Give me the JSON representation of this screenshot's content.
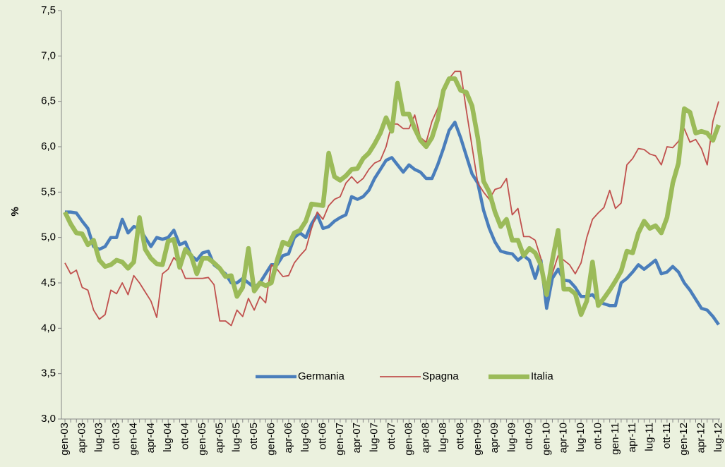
{
  "chart_data": {
    "type": "line",
    "y_label": "%",
    "categories": [
      "gen-03",
      null,
      null,
      "apr-03",
      null,
      null,
      "lug-03",
      null,
      null,
      "ott-03",
      null,
      null,
      "gen-04",
      null,
      null,
      "apr-04",
      null,
      null,
      "lug-04",
      null,
      null,
      "ott-04",
      null,
      null,
      "gen-05",
      null,
      null,
      "apr-05",
      null,
      null,
      "lug-05",
      null,
      null,
      "ott-05",
      null,
      null,
      "gen-06",
      null,
      null,
      "apr-06",
      null,
      null,
      "lug-06",
      null,
      null,
      "ott-06",
      null,
      null,
      "gen-07",
      null,
      null,
      "apr-07",
      null,
      null,
      "lug-07",
      null,
      null,
      "ott-07",
      null,
      null,
      "gen-08",
      null,
      null,
      "apr-08",
      null,
      null,
      "lug-08",
      null,
      null,
      "ott-08",
      null,
      null,
      "gen-09",
      null,
      null,
      "apr-09",
      null,
      null,
      "lug-09",
      null,
      null,
      "ott-09",
      null,
      null,
      "gen-10",
      null,
      null,
      "apr-10",
      null,
      null,
      "lug-10",
      null,
      null,
      "ott-10",
      null,
      null,
      "gen-11",
      null,
      null,
      "apr-11",
      null,
      null,
      "lug-11",
      null,
      null,
      "ott-11",
      null,
      null,
      "gen-12",
      null,
      null,
      "apr-12",
      null,
      null,
      "lug-12"
    ],
    "series": [
      {
        "name": "Germania",
        "color": "#4a7ebb",
        "values": [
          5.28,
          5.28,
          5.27,
          5.18,
          5.1,
          4.9,
          4.87,
          4.9,
          5.0,
          5.0,
          5.2,
          5.05,
          5.12,
          5.1,
          5.0,
          4.9,
          5.0,
          4.98,
          5.0,
          5.08,
          4.92,
          4.95,
          4.8,
          4.75,
          4.83,
          4.85,
          4.7,
          4.65,
          4.6,
          4.5,
          4.5,
          4.55,
          4.5,
          4.45,
          4.5,
          4.6,
          4.7,
          4.7,
          4.8,
          4.82,
          5.0,
          5.05,
          5.0,
          5.15,
          5.25,
          5.1,
          5.12,
          5.18,
          5.22,
          5.25,
          5.45,
          5.42,
          5.45,
          5.52,
          5.65,
          5.75,
          5.85,
          5.88,
          5.8,
          5.72,
          5.8,
          5.75,
          5.72,
          5.65,
          5.65,
          5.8,
          5.98,
          6.18,
          6.27,
          6.1,
          5.9,
          5.7,
          5.6,
          5.3,
          5.1,
          4.95,
          4.85,
          4.83,
          4.82,
          4.75,
          4.8,
          4.75,
          4.55,
          4.75,
          4.22,
          4.55,
          4.65,
          4.53,
          4.52,
          4.45,
          4.35,
          4.35,
          4.37,
          4.3,
          4.27,
          4.25,
          4.25,
          4.5,
          4.55,
          4.62,
          4.7,
          4.65,
          4.7,
          4.75,
          4.6,
          4.62,
          4.68,
          4.62,
          4.5,
          4.42,
          4.32,
          4.22,
          4.2,
          4.13,
          4.04
        ]
      },
      {
        "name": "Spagna",
        "color": "#c0504d",
        "values": [
          4.72,
          4.6,
          4.64,
          4.45,
          4.42,
          4.2,
          4.1,
          4.15,
          4.42,
          4.38,
          4.5,
          4.37,
          4.58,
          4.5,
          4.4,
          4.3,
          4.12,
          4.6,
          4.65,
          4.78,
          4.7,
          4.55,
          4.55,
          4.55,
          4.55,
          4.56,
          4.48,
          4.08,
          4.08,
          4.03,
          4.2,
          4.13,
          4.33,
          4.2,
          4.35,
          4.28,
          4.7,
          4.65,
          4.57,
          4.58,
          4.72,
          4.8,
          4.87,
          5.1,
          5.28,
          5.2,
          5.35,
          5.42,
          5.45,
          5.6,
          5.67,
          5.6,
          5.65,
          5.75,
          5.82,
          5.85,
          6.0,
          6.25,
          6.25,
          6.2,
          6.2,
          6.35,
          6.1,
          6.05,
          6.28,
          6.42,
          6.6,
          6.75,
          6.83,
          6.83,
          6.4,
          6.0,
          5.6,
          5.5,
          5.42,
          5.53,
          5.55,
          5.65,
          5.25,
          5.32,
          5.01,
          5.01,
          4.97,
          4.77,
          4.45,
          4.6,
          4.8,
          4.75,
          4.7,
          4.6,
          4.72,
          5.0,
          5.2,
          5.27,
          5.33,
          5.52,
          5.32,
          5.38,
          5.8,
          5.87,
          5.98,
          5.97,
          5.92,
          5.9,
          5.8,
          6.0,
          5.99,
          6.06,
          6.2,
          6.05,
          6.08,
          5.98,
          5.8,
          6.28,
          6.5
        ]
      },
      {
        "name": "Italia",
        "color": "#9bbb59",
        "values": [
          5.28,
          5.15,
          5.05,
          5.04,
          4.92,
          4.97,
          4.75,
          4.68,
          4.7,
          4.75,
          4.73,
          4.66,
          4.73,
          5.22,
          4.87,
          4.77,
          4.71,
          4.7,
          4.96,
          4.98,
          4.67,
          4.87,
          4.8,
          4.6,
          4.77,
          4.77,
          4.72,
          4.66,
          4.57,
          4.58,
          4.35,
          4.45,
          4.88,
          4.41,
          4.5,
          4.47,
          4.5,
          4.75,
          4.95,
          4.92,
          5.05,
          5.08,
          5.18,
          5.37,
          5.36,
          5.35,
          5.93,
          5.67,
          5.63,
          5.68,
          5.75,
          5.76,
          5.87,
          5.93,
          6.03,
          6.15,
          6.32,
          6.17,
          6.7,
          6.36,
          6.36,
          6.2,
          6.07,
          6.0,
          6.1,
          6.3,
          6.62,
          6.75,
          6.75,
          6.62,
          6.6,
          6.45,
          6.1,
          5.62,
          5.5,
          5.28,
          5.12,
          5.2,
          4.97,
          4.97,
          4.8,
          4.88,
          4.83,
          4.7,
          4.37,
          4.75,
          5.08,
          4.43,
          4.43,
          4.38,
          4.15,
          4.3,
          4.73,
          4.25,
          4.33,
          4.42,
          4.52,
          4.63,
          4.85,
          4.83,
          5.05,
          5.18,
          5.1,
          5.13,
          5.05,
          5.22,
          5.6,
          5.82,
          6.42,
          6.38,
          6.15,
          6.17,
          6.15,
          6.07,
          6.24
        ]
      }
    ],
    "ylim": [
      3.0,
      7.5
    ],
    "yticks": [
      {
        "value": 3.0,
        "label": "3,0"
      },
      {
        "value": 3.5,
        "label": "3,5"
      },
      {
        "value": 4.0,
        "label": "4,0"
      },
      {
        "value": 4.5,
        "label": "4,5"
      },
      {
        "value": 5.0,
        "label": "5,0"
      },
      {
        "value": 5.5,
        "label": "5,5"
      },
      {
        "value": 6.0,
        "label": "6,0"
      },
      {
        "value": 6.5,
        "label": "6,5"
      },
      {
        "value": 7.0,
        "label": "7,0"
      },
      {
        "value": 7.5,
        "label": "7,5"
      }
    ],
    "legend": "bottom-center"
  }
}
